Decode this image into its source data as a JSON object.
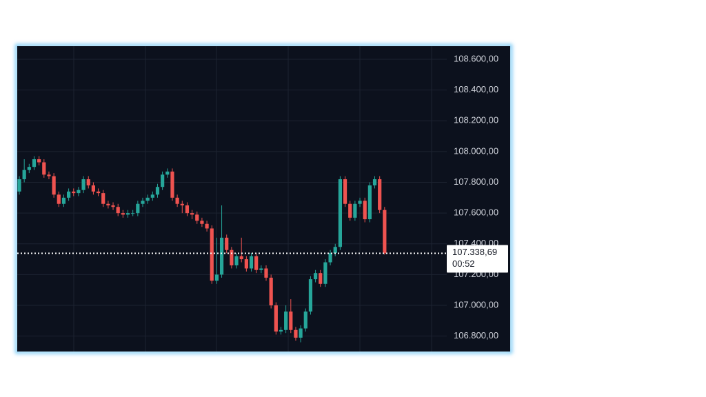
{
  "chart_data": {
    "type": "candlestick",
    "up_color": "#26a69a",
    "down_color": "#ef5350",
    "open": [
      107740,
      107820,
      107880,
      107900,
      107950,
      107930,
      107850,
      107840,
      107720,
      107660,
      107700,
      107740,
      107730,
      107750,
      107820,
      107780,
      107740,
      107730,
      107660,
      107650,
      107640,
      107600,
      107590,
      107600,
      107600,
      107660,
      107680,
      107700,
      107720,
      107770,
      107850,
      107870,
      107700,
      107660,
      107650,
      107600,
      107590,
      107550,
      107530,
      107500,
      107160,
      107200,
      107440,
      107360,
      107260,
      107320,
      107300,
      107240,
      107320,
      107230,
      107240,
      107180,
      107000,
      106830,
      106840,
      106960,
      106840,
      106790,
      106850,
      106960,
      107170,
      107210,
      107140,
      107280,
      107340,
      107380,
      107820,
      107660,
      107570,
      107660,
      107680,
      107560,
      107780,
      107820,
      107620
    ],
    "high": [
      107840,
      107950,
      107920,
      107970,
      107970,
      107950,
      107870,
      107860,
      107740,
      107720,
      107760,
      107760,
      107770,
      107840,
      107840,
      107800,
      107760,
      107750,
      107680,
      107670,
      107660,
      107620,
      107620,
      107620,
      107680,
      107700,
      107720,
      107740,
      107790,
      107870,
      107890,
      107890,
      107720,
      107680,
      107670,
      107620,
      107610,
      107570,
      107550,
      107520,
      107440,
      107650,
      107460,
      107380,
      107340,
      107440,
      107320,
      107340,
      107340,
      107260,
      107260,
      107200,
      107020,
      106860,
      107000,
      107040,
      106860,
      106870,
      106980,
      107190,
      107230,
      107230,
      107300,
      107360,
      107400,
      107840,
      107840,
      107680,
      107680,
      107700,
      107700,
      107800,
      107840,
      107840,
      107640
    ],
    "low": [
      107720,
      107800,
      107860,
      107880,
      107910,
      107830,
      107820,
      107700,
      107640,
      107640,
      107680,
      107710,
      107710,
      107730,
      107760,
      107720,
      107710,
      107640,
      107630,
      107620,
      107580,
      107570,
      107570,
      107580,
      107580,
      107640,
      107660,
      107680,
      107700,
      107750,
      107830,
      107680,
      107640,
      107600,
      107580,
      107560,
      107530,
      107510,
      107480,
      107140,
      107140,
      107180,
      107340,
      107240,
      107240,
      107280,
      107220,
      107220,
      107210,
      107210,
      107160,
      106980,
      106810,
      106810,
      106820,
      106820,
      106770,
      106760,
      106830,
      106940,
      107150,
      107120,
      107120,
      107260,
      107320,
      107360,
      107640,
      107550,
      107550,
      107640,
      107540,
      107540,
      107760,
      107600,
      107330
    ],
    "close": [
      107820,
      107880,
      107900,
      107950,
      107930,
      107850,
      107840,
      107720,
      107660,
      107700,
      107740,
      107730,
      107750,
      107820,
      107780,
      107740,
      107730,
      107660,
      107650,
      107640,
      107600,
      107590,
      107600,
      107600,
      107660,
      107680,
      107700,
      107720,
      107770,
      107850,
      107870,
      107700,
      107660,
      107650,
      107600,
      107590,
      107550,
      107530,
      107500,
      107160,
      107200,
      107440,
      107360,
      107260,
      107320,
      107300,
      107240,
      107320,
      107230,
      107240,
      107180,
      107000,
      106830,
      106840,
      106960,
      106840,
      106790,
      106850,
      106960,
      107170,
      107210,
      107140,
      107280,
      107340,
      107380,
      107820,
      107660,
      107570,
      107660,
      107680,
      107560,
      107780,
      107820,
      107620,
      107338.69
    ],
    "ylim": [
      106700,
      108685
    ],
    "yticks": [
      {
        "value": 108600,
        "label": "108.600,00"
      },
      {
        "value": 108400,
        "label": "108.400,00"
      },
      {
        "value": 108200,
        "label": "108.200,00"
      },
      {
        "value": 108000,
        "label": "108.000,00"
      },
      {
        "value": 107800,
        "label": "107.800,00"
      },
      {
        "value": 107600,
        "label": "107.600,00"
      },
      {
        "value": 107400,
        "label": "107.400,00"
      },
      {
        "value": 107200,
        "label": "107.200,00"
      },
      {
        "value": 107000,
        "label": "107.000,00"
      },
      {
        "value": 106800,
        "label": "106.800,00"
      }
    ],
    "grid": true,
    "last_price": {
      "value": 107338.69,
      "label": "107.338,69"
    },
    "countdown": "00:52"
  }
}
